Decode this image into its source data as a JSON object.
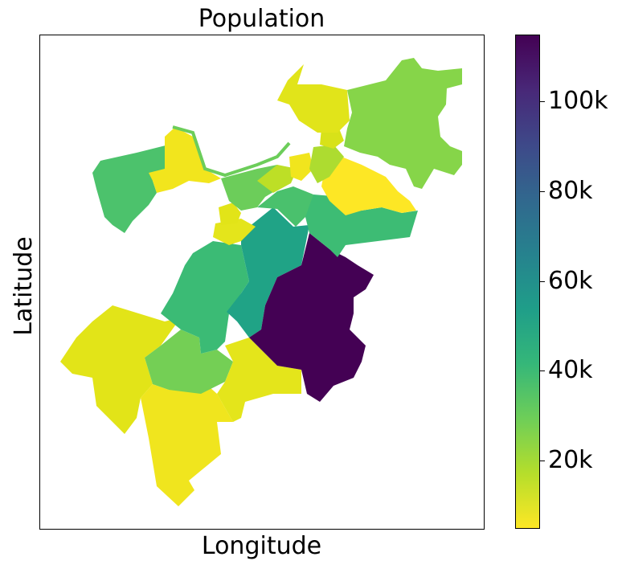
{
  "map": {
    "title": "Population",
    "xlabel": "Longitude",
    "ylabel": "Latitude",
    "colormap": "viridis_r",
    "colorbar": {
      "min": 5000,
      "max": 115000,
      "ticks": [
        {
          "value": 20000,
          "label": "20k"
        },
        {
          "value": 40000,
          "label": "40k"
        },
        {
          "value": 60000,
          "label": "60k"
        },
        {
          "value": 80000,
          "label": "80k"
        },
        {
          "value": 100000,
          "label": "100k"
        }
      ],
      "stops": [
        "#fde725",
        "#b5de2b",
        "#6ece58",
        "#35b779",
        "#1f9e89",
        "#26828e",
        "#31688e",
        "#3e4989",
        "#482878",
        "#440154"
      ]
    }
  }
}
